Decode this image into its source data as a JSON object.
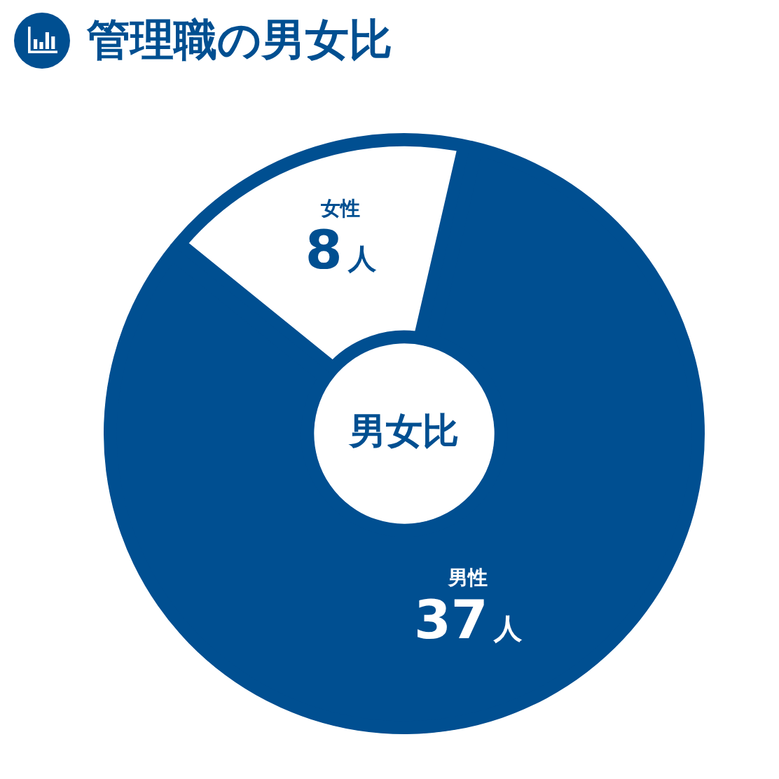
{
  "chart_data": {
    "type": "donut",
    "title": "管理職の男女比",
    "categories": [
      "女性",
      "男性"
    ],
    "values": [
      8,
      37
    ],
    "colors": [
      "#ffffff",
      "#004f91"
    ],
    "value_labels": [
      "8人",
      "37人"
    ],
    "annotations": [
      "男女比"
    ],
    "legend": false
  }
}
